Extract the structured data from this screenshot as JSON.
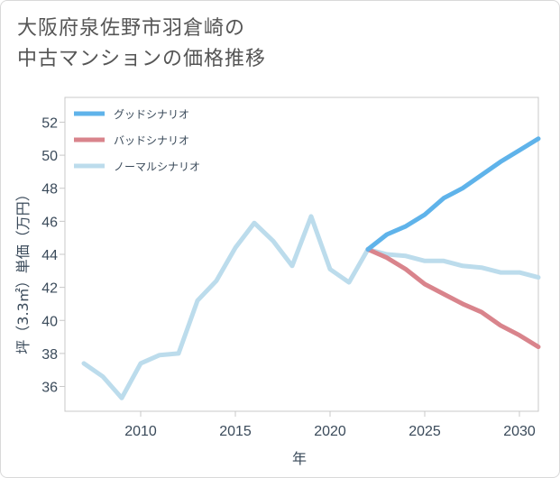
{
  "title_lines": [
    "大阪府泉佐野市羽倉崎の",
    "中古マンションの価格推移"
  ],
  "chart_data": {
    "type": "line",
    "title": "大阪府泉佐野市羽倉崎の中古マンションの価格推移",
    "xlabel": "年",
    "ylabel": "坪（3.3㎡）単価（万円）",
    "xlim": [
      2006,
      2031
    ],
    "ylim": [
      34.5,
      53.5
    ],
    "x_ticks": [
      2010,
      2015,
      2020,
      2025,
      2030
    ],
    "y_ticks": [
      36,
      38,
      40,
      42,
      44,
      46,
      48,
      50,
      52
    ],
    "grid": false,
    "legend_position": "top-left",
    "series": [
      {
        "name": "グッドシナリオ",
        "color": "#5fb3ea",
        "x": [
          2022,
          2023,
          2024,
          2025,
          2026,
          2027,
          2028,
          2029,
          2030,
          2031
        ],
        "values": [
          44.3,
          45.2,
          45.7,
          46.4,
          47.4,
          48.0,
          48.8,
          49.6,
          50.3,
          51.0
        ]
      },
      {
        "name": "バッドシナリオ",
        "color": "#d9848c",
        "x": [
          2022,
          2023,
          2024,
          2025,
          2026,
          2027,
          2028,
          2029,
          2030,
          2031
        ],
        "values": [
          44.3,
          43.8,
          43.1,
          42.2,
          41.6,
          41.0,
          40.5,
          39.7,
          39.1,
          38.4
        ]
      },
      {
        "name": "ノーマルシナリオ",
        "color": "#bcdcec",
        "x": [
          2007,
          2008,
          2009,
          2010,
          2011,
          2012,
          2013,
          2014,
          2015,
          2016,
          2017,
          2018,
          2019,
          2020,
          2021,
          2022,
          2023,
          2024,
          2025,
          2026,
          2027,
          2028,
          2029,
          2030,
          2031
        ],
        "values": [
          37.4,
          36.6,
          35.3,
          37.4,
          37.9,
          38.0,
          41.2,
          42.4,
          44.4,
          45.9,
          44.8,
          43.3,
          46.3,
          43.1,
          42.3,
          44.3,
          44.0,
          43.9,
          43.6,
          43.6,
          43.3,
          43.2,
          42.9,
          42.9,
          42.6
        ]
      }
    ]
  }
}
